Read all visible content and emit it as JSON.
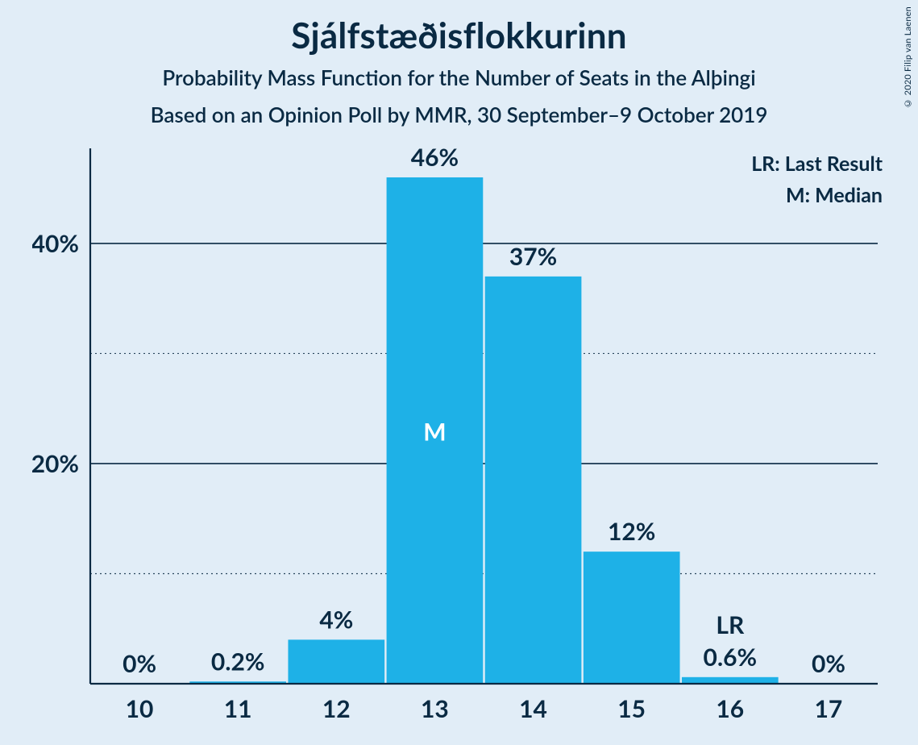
{
  "copyright": "© 2020 Filip van Laenen",
  "title": "Sjálfstæðisflokkurinn",
  "subtitle1": "Probability Mass Function for the Number of Seats in the Alþingi",
  "subtitle2": "Based on an Opinion Poll by MMR, 30 September–9 October 2019",
  "legend": {
    "lr": "LR: Last Result",
    "m": "M: Median"
  },
  "chart": {
    "type": "bar",
    "categories": [
      10,
      11,
      12,
      13,
      14,
      15,
      16,
      17
    ],
    "values": [
      0,
      0.2,
      4,
      46,
      37,
      12,
      0.6,
      0
    ],
    "value_labels": [
      "0%",
      "0.2%",
      "4%",
      "46%",
      "37%",
      "12%",
      "0.6%",
      "0%"
    ],
    "bar_color": "#1eb1e7",
    "background_color": "#e1edf7",
    "text_color": "#0a2a43",
    "ylim": [
      0,
      46
    ],
    "y_ticks_major": [
      20,
      40
    ],
    "y_ticks_minor": [
      10,
      30
    ],
    "ytick_labels": {
      "20": "20%",
      "40": "40%"
    },
    "major_grid_color": "#0a2a43",
    "major_grid_width": 1.6,
    "minor_grid_dash": "2,4",
    "minor_grid_color": "#0a2a43",
    "axis_color": "#0a2a43",
    "axis_width": 2.2,
    "bar_width_ratio": 0.98,
    "median_index": 3,
    "median_label": "M",
    "lr_index": 6,
    "lr_label": "LR",
    "axis_fontsize": 30,
    "value_label_fontsize": 30,
    "value_label_fontweight": 700,
    "inbar_label_fontsize": 30,
    "inbar_label_color": "#ffffff"
  }
}
